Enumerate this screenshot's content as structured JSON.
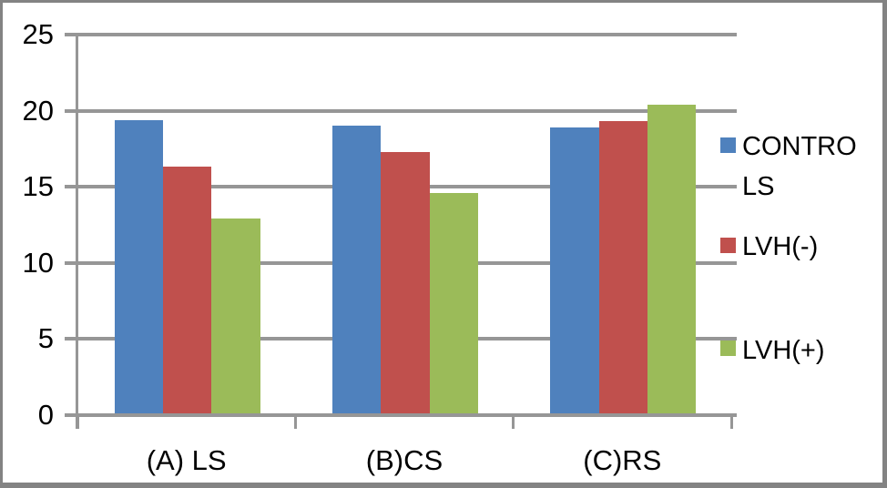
{
  "colors": {
    "series_blue": "#4F81BD",
    "series_red": "#C0504D",
    "series_green": "#9BBB59",
    "gridline_gray": "#969696",
    "axis_gray": "#969696",
    "frame_border_gray": "#838383",
    "text_black": "#000000",
    "background": "#FFFFFF"
  },
  "chart_data": {
    "type": "bar",
    "title": "",
    "xlabel": "",
    "ylabel": "",
    "categories": [
      "(A) LS",
      "(B)CS",
      "(C)RS"
    ],
    "series": [
      {
        "name": "CONTROLS",
        "label_lines": [
          "CONTRO",
          "LS"
        ],
        "color": "#4F81BD",
        "values": [
          19.4,
          19.0,
          18.9
        ]
      },
      {
        "name": "LVH(-)",
        "label_lines": [
          "LVH(-)"
        ],
        "color": "#C0504D",
        "values": [
          16.3,
          17.3,
          19.3
        ]
      },
      {
        "name": "LVH(+)",
        "label_lines": [
          "LVH(+)"
        ],
        "color": "#9BBB59",
        "values": [
          12.9,
          14.6,
          20.4
        ]
      }
    ],
    "ylim": [
      0,
      25
    ],
    "ytick_interval": 5,
    "yticks": [
      0,
      5,
      10,
      15,
      20,
      25
    ],
    "grid": true,
    "legend_position": "right"
  }
}
